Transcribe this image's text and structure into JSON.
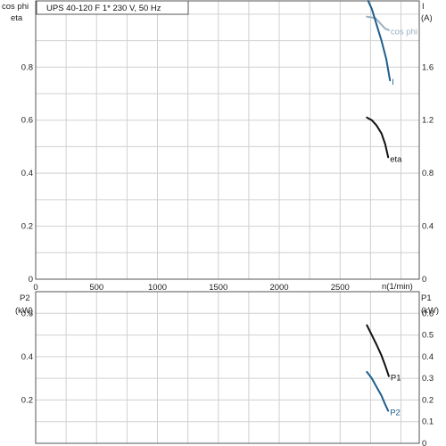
{
  "chart_data": [
    {
      "type": "line",
      "title": "UPS 40-120 F    1* 230 V, 50 Hz",
      "x_axis": {
        "label": "n(1/min)",
        "range": [
          0,
          3150
        ],
        "ticks": [
          0,
          500,
          1000,
          1500,
          2000,
          2500
        ]
      },
      "left_axis": {
        "labels": [
          "cos phi",
          "eta"
        ],
        "range": [
          0,
          1.05
        ],
        "ticks": [
          0,
          0.2,
          0.4,
          0.6,
          0.8
        ]
      },
      "right_axis": {
        "labels": [
          "I",
          "(A)"
        ],
        "range": [
          0,
          2.1
        ],
        "ticks": [
          0,
          0.4,
          0.8,
          1.2,
          1.6
        ]
      },
      "grid": true,
      "series": [
        {
          "name": "cos phi",
          "axis": "left",
          "color": "#9bb0c2",
          "points": [
            [
              2720,
              0.99
            ],
            [
              2790,
              0.985
            ],
            [
              2840,
              0.96
            ],
            [
              2870,
              0.945
            ],
            [
              2900,
              0.94
            ]
          ]
        },
        {
          "name": "I",
          "axis": "right",
          "color": "#1e5f8e",
          "points": [
            [
              2730,
              2.1
            ],
            [
              2760,
              2.04
            ],
            [
              2800,
              1.92
            ],
            [
              2840,
              1.8
            ],
            [
              2880,
              1.66
            ],
            [
              2910,
              1.5
            ]
          ]
        },
        {
          "name": "eta",
          "axis": "left",
          "color": "#111111",
          "points": [
            [
              2720,
              0.61
            ],
            [
              2760,
              0.6
            ],
            [
              2800,
              0.58
            ],
            [
              2840,
              0.55
            ],
            [
              2870,
              0.51
            ],
            [
              2895,
              0.46
            ]
          ]
        }
      ]
    },
    {
      "type": "line",
      "x_axis": {
        "range": [
          0,
          3150
        ]
      },
      "left_axis": {
        "labels": [
          "P2",
          "(kW)"
        ],
        "range": [
          0,
          0.7
        ],
        "ticks": [
          0.2,
          0.4,
          0.6
        ]
      },
      "right_axis": {
        "labels": [
          "P1",
          "(kW)"
        ],
        "range": [
          0,
          0.7
        ],
        "ticks": [
          0,
          0.1,
          0.2,
          0.3,
          0.4,
          0.5,
          0.6
        ]
      },
      "grid": true,
      "series": [
        {
          "name": "P1",
          "axis": "right",
          "color": "#111111",
          "points": [
            [
              2720,
              0.545
            ],
            [
              2760,
              0.5
            ],
            [
              2800,
              0.455
            ],
            [
              2840,
              0.405
            ],
            [
              2870,
              0.36
            ],
            [
              2900,
              0.31
            ]
          ]
        },
        {
          "name": "P2",
          "axis": "left",
          "color": "#1e5f8e",
          "points": [
            [
              2720,
              0.33
            ],
            [
              2760,
              0.3
            ],
            [
              2800,
              0.26
            ],
            [
              2840,
              0.22
            ],
            [
              2870,
              0.18
            ],
            [
              2895,
              0.15
            ]
          ]
        }
      ]
    }
  ]
}
